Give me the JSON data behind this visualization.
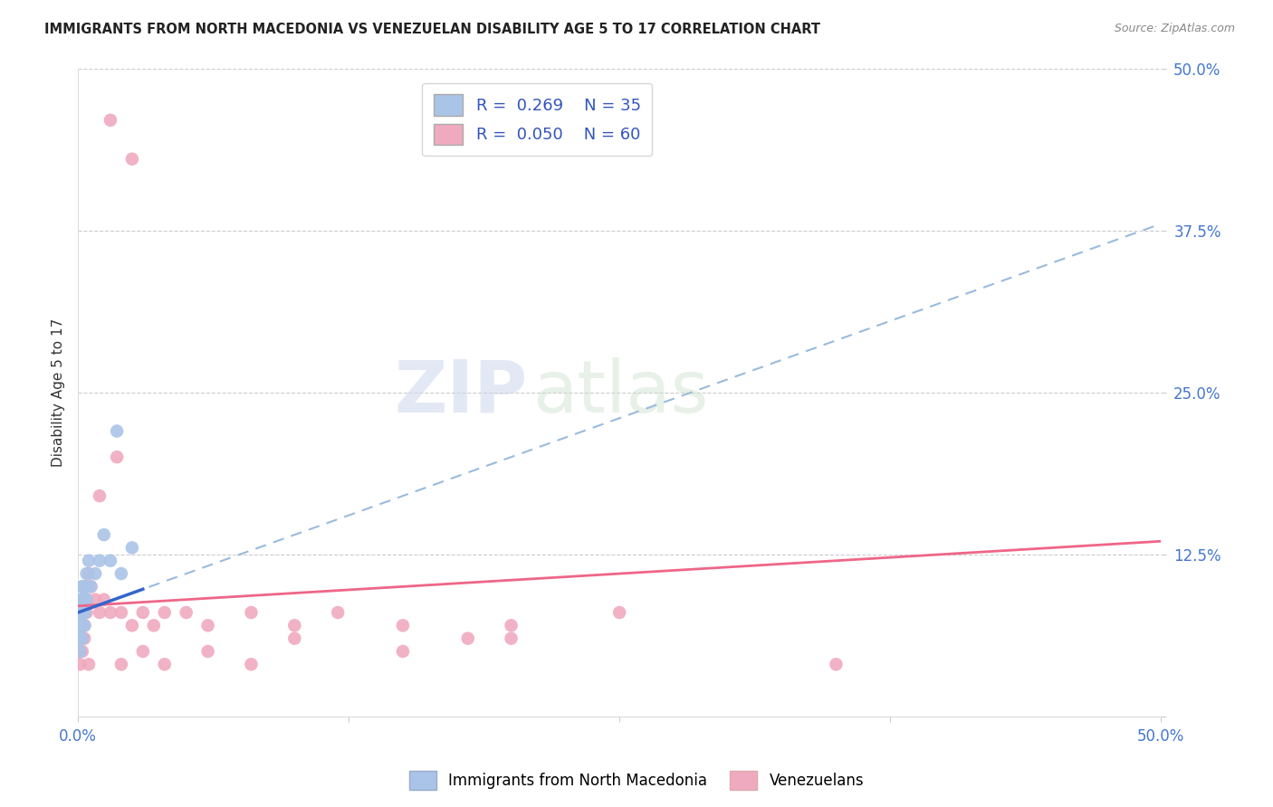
{
  "title": "IMMIGRANTS FROM NORTH MACEDONIA VS VENEZUELAN DISABILITY AGE 5 TO 17 CORRELATION CHART",
  "source": "Source: ZipAtlas.com",
  "ylabel": "Disability Age 5 to 17",
  "xlim": [
    0.0,
    0.5
  ],
  "ylim": [
    0.0,
    0.5
  ],
  "yticks": [
    0.0,
    0.125,
    0.25,
    0.375,
    0.5
  ],
  "ytick_labels": [
    "",
    "12.5%",
    "25.0%",
    "37.5%",
    "50.0%"
  ],
  "blue_R": 0.269,
  "blue_N": 35,
  "pink_R": 0.05,
  "pink_N": 60,
  "blue_color": "#aac4e8",
  "blue_line_solid_color": "#3366cc",
  "blue_line_dash_color": "#99bbdd",
  "pink_color": "#f0aac0",
  "pink_line_color": "#ee6688",
  "legend_label_blue": "Immigrants from North Macedonia",
  "legend_label_pink": "Venezuelans",
  "blue_points_x": [
    0.001,
    0.002,
    0.001,
    0.003,
    0.002,
    0.001,
    0.003,
    0.002,
    0.001,
    0.004,
    0.002,
    0.003,
    0.001,
    0.002,
    0.003,
    0.004,
    0.002,
    0.001,
    0.003,
    0.002,
    0.001,
    0.003,
    0.004,
    0.002,
    0.001,
    0.005,
    0.003,
    0.012,
    0.015,
    0.018,
    0.025,
    0.02,
    0.01,
    0.008,
    0.006
  ],
  "blue_points_y": [
    0.09,
    0.1,
    0.08,
    0.1,
    0.07,
    0.06,
    0.08,
    0.09,
    0.07,
    0.11,
    0.08,
    0.09,
    0.06,
    0.07,
    0.1,
    0.09,
    0.1,
    0.08,
    0.07,
    0.06,
    0.05,
    0.08,
    0.1,
    0.09,
    0.07,
    0.12,
    0.1,
    0.14,
    0.12,
    0.22,
    0.13,
    0.11,
    0.12,
    0.11,
    0.1
  ],
  "pink_points_x": [
    0.001,
    0.002,
    0.001,
    0.003,
    0.002,
    0.001,
    0.003,
    0.002,
    0.001,
    0.004,
    0.002,
    0.003,
    0.001,
    0.002,
    0.003,
    0.004,
    0.002,
    0.001,
    0.003,
    0.002,
    0.001,
    0.003,
    0.004,
    0.002,
    0.001,
    0.005,
    0.003,
    0.006,
    0.008,
    0.01,
    0.012,
    0.015,
    0.018,
    0.02,
    0.025,
    0.03,
    0.035,
    0.04,
    0.05,
    0.06,
    0.08,
    0.1,
    0.12,
    0.15,
    0.18,
    0.2,
    0.25,
    0.01,
    0.02,
    0.03,
    0.04,
    0.06,
    0.08,
    0.1,
    0.15,
    0.2,
    0.35,
    0.015,
    0.025,
    0.005
  ],
  "pink_points_y": [
    0.08,
    0.09,
    0.07,
    0.1,
    0.06,
    0.05,
    0.07,
    0.08,
    0.06,
    0.09,
    0.07,
    0.08,
    0.05,
    0.06,
    0.09,
    0.08,
    0.09,
    0.07,
    0.06,
    0.05,
    0.04,
    0.07,
    0.09,
    0.08,
    0.06,
    0.11,
    0.09,
    0.1,
    0.09,
    0.08,
    0.09,
    0.08,
    0.2,
    0.08,
    0.07,
    0.08,
    0.07,
    0.08,
    0.08,
    0.07,
    0.08,
    0.07,
    0.08,
    0.07,
    0.06,
    0.07,
    0.08,
    0.17,
    0.04,
    0.05,
    0.04,
    0.05,
    0.04,
    0.06,
    0.05,
    0.06,
    0.04,
    0.46,
    0.43,
    0.04
  ],
  "blue_regline_x": [
    0.0,
    0.5
  ],
  "blue_regline_y": [
    0.08,
    0.38
  ],
  "pink_regline_x": [
    0.0,
    0.5
  ],
  "pink_regline_y": [
    0.085,
    0.135
  ]
}
